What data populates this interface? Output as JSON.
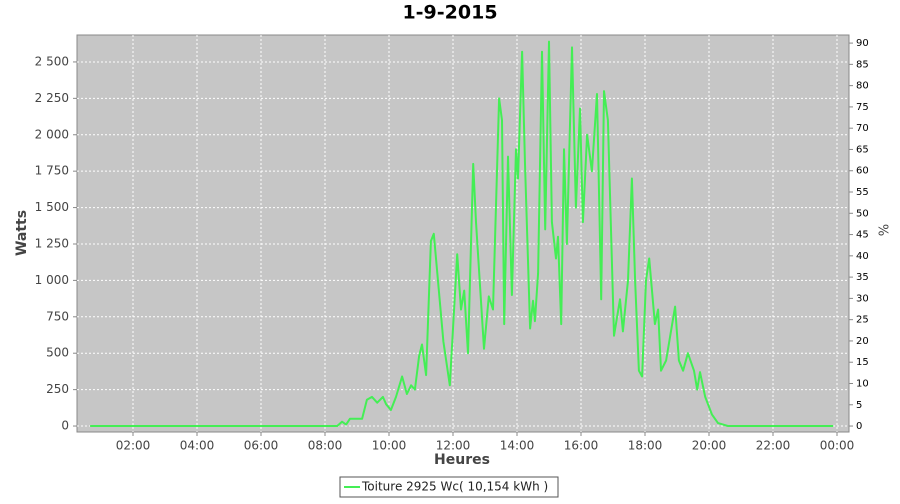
{
  "chart_data": {
    "type": "line",
    "title": "1-9-2015",
    "xlabel": "Heures",
    "ylabel": "Watts",
    "y2label": "%",
    "x": [
      0.66,
      8.38,
      8.53,
      8.66,
      8.78,
      9.16,
      9.31,
      9.47,
      9.63,
      9.81,
      9.91,
      10.06,
      10.22,
      10.41,
      10.56,
      10.69,
      10.81,
      10.94,
      11.03,
      11.16,
      11.31,
      11.4,
      11.7,
      11.9,
      12.13,
      12.25,
      12.35,
      12.47,
      12.63,
      12.72,
      12.97,
      13.12,
      13.25,
      13.44,
      13.53,
      13.6,
      13.72,
      13.84,
      13.97,
      14.03,
      14.16,
      14.25,
      14.41,
      14.5,
      14.56,
      14.66,
      14.78,
      14.88,
      15.0,
      15.09,
      15.22,
      15.28,
      15.38,
      15.47,
      15.56,
      15.72,
      15.84,
      15.97,
      16.06,
      16.19,
      16.34,
      16.5,
      16.63,
      16.72,
      16.84,
      17.03,
      17.22,
      17.31,
      17.47,
      17.59,
      17.69,
      17.81,
      17.91,
      18.03,
      18.13,
      18.31,
      18.41,
      18.5,
      18.66,
      18.94,
      19.06,
      19.19,
      19.34,
      19.53,
      19.63,
      19.72,
      19.88,
      20.09,
      20.28,
      20.59,
      23.88
    ],
    "series": [
      {
        "name": "Toiture 2925 Wc( 10,154 kWh )",
        "color": "#44ee55",
        "values": [
          0,
          0,
          30,
          10,
          50,
          50,
          180,
          200,
          160,
          200,
          150,
          110,
          200,
          340,
          220,
          280,
          250,
          480,
          560,
          350,
          1270,
          1320,
          580,
          280,
          1180,
          800,
          930,
          500,
          1800,
          1400,
          530,
          890,
          800,
          2250,
          2100,
          700,
          1850,
          900,
          1900,
          1700,
          2570,
          1800,
          670,
          860,
          720,
          1050,
          2570,
          1350,
          2640,
          1400,
          1150,
          1300,
          700,
          1900,
          1250,
          2600,
          1500,
          2180,
          1400,
          2000,
          1750,
          2280,
          870,
          2300,
          2100,
          620,
          870,
          650,
          1000,
          1700,
          1000,
          380,
          340,
          1000,
          1150,
          700,
          800,
          380,
          450,
          820,
          450,
          380,
          500,
          380,
          250,
          370,
          200,
          80,
          20,
          0,
          0
        ]
      }
    ],
    "xlim": [
      0.25,
      24.375
    ],
    "xticks": [
      {
        "value": 2,
        "label": "02:00"
      },
      {
        "value": 4,
        "label": "04:00"
      },
      {
        "value": 6,
        "label": "06:00"
      },
      {
        "value": 8,
        "label": "08:00"
      },
      {
        "value": 10,
        "label": "10:00"
      },
      {
        "value": 12,
        "label": "12:00"
      },
      {
        "value": 14,
        "label": "14:00"
      },
      {
        "value": 16,
        "label": "16:00"
      },
      {
        "value": 18,
        "label": "18:00"
      },
      {
        "value": 20,
        "label": "20:00"
      },
      {
        "value": 22,
        "label": "22:00"
      },
      {
        "value": 24,
        "label": "00:00"
      }
    ],
    "ylim": [
      -41,
      2685
    ],
    "yticks": [
      0,
      250,
      500,
      750,
      {
        "value": 1000,
        "label": "1 000"
      },
      {
        "value": 1250,
        "label": "1 250"
      },
      {
        "value": 1500,
        "label": "1 500"
      },
      {
        "value": 1750,
        "label": "1 750"
      },
      {
        "value": 2000,
        "label": "2 000"
      },
      {
        "value": 2250,
        "label": "2 250"
      },
      {
        "value": 2500,
        "label": "2 500"
      }
    ],
    "y2lim": [
      -1.4,
      91.9
    ],
    "y2ticks": [
      0,
      5,
      10,
      15,
      20,
      25,
      30,
      35,
      40,
      45,
      50,
      55,
      60,
      65,
      70,
      75,
      80,
      85,
      90
    ],
    "grid": true,
    "legend": "bottom"
  }
}
